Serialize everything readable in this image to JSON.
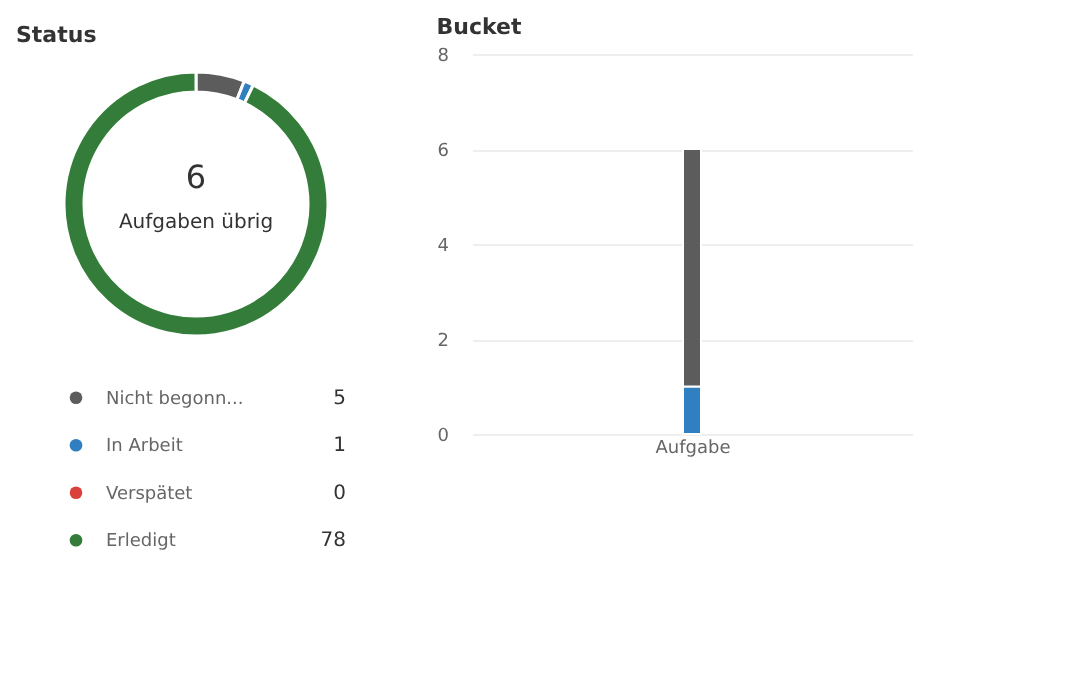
{
  "chart_data": [
    {
      "type": "donut",
      "title": "Status",
      "categories": [
        "Nicht begonn...",
        "In Arbeit",
        "Verspätet",
        "Erledigt"
      ],
      "values": [
        5,
        1,
        0,
        78
      ],
      "colors": [
        "#5c5c5c",
        "#2f7fc1",
        "#d9413a",
        "#347c3a"
      ],
      "annotations": [
        "6",
        "Aufgaben übrig"
      ],
      "value_labels": [
        "5",
        "1",
        "0",
        "78"
      ],
      "legend": "bottom"
    },
    {
      "type": "bar",
      "title": "Bucket",
      "categories": [
        "Aufgabe"
      ],
      "stacked": true,
      "series": [
        {
          "color": "#2f7fc1",
          "values": [
            1
          ]
        },
        {
          "color": "#5c5c5c",
          "values": [
            5
          ]
        }
      ],
      "ylim": [
        0,
        8
      ],
      "yticks": [
        0,
        2,
        4,
        6,
        8
      ],
      "grid": "y"
    }
  ]
}
